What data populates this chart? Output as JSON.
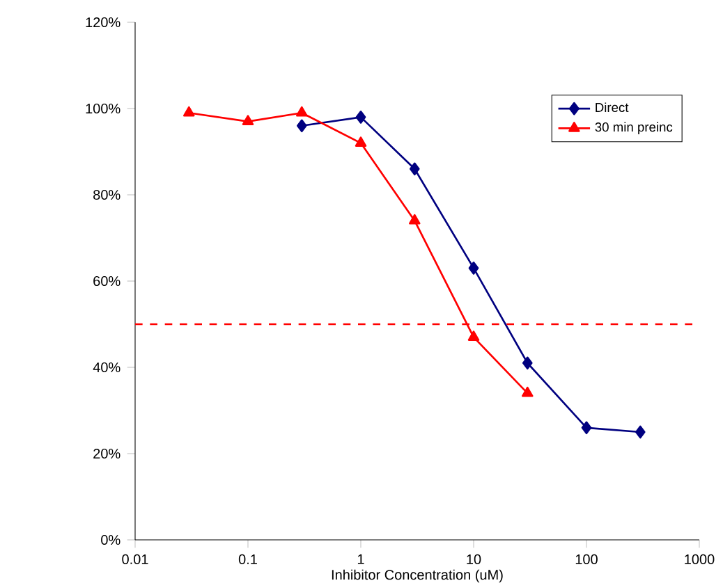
{
  "chart_data": {
    "type": "line",
    "xlabel": "Inhibitor Concentration (uM)",
    "log": "x",
    "x": [
      0.03,
      0.1,
      0.3,
      1,
      3,
      10,
      30,
      100,
      300
    ],
    "series": [
      {
        "name": "Direct",
        "color": "#000080",
        "marker": "diamond",
        "values": [
          null,
          null,
          96,
          98,
          86,
          63,
          41,
          26,
          25
        ]
      },
      {
        "name": "30 min preinc",
        "color": "#ff0000",
        "marker": "triangle",
        "values": [
          99,
          97,
          99,
          92,
          74,
          47,
          34,
          null,
          null
        ]
      }
    ],
    "xlim": [
      0.01,
      1000
    ],
    "xticks": [
      0.01,
      0.1,
      1,
      10,
      100,
      1000
    ],
    "ylim": [
      0,
      120
    ],
    "yticks": [
      {
        "value": 0,
        "label": "0%"
      },
      {
        "value": 20,
        "label": "20%"
      },
      {
        "value": 40,
        "label": "40%"
      },
      {
        "value": 60,
        "label": "60%"
      },
      {
        "value": 80,
        "label": "80%"
      },
      {
        "value": 100,
        "label": "100%"
      },
      {
        "value": 120,
        "label": "120%"
      }
    ],
    "ref_lines": [
      {
        "axis": "y",
        "value": 50,
        "color": "#ff0000",
        "line_style": "dashed"
      }
    ],
    "legend": "top right",
    "grid": false
  }
}
